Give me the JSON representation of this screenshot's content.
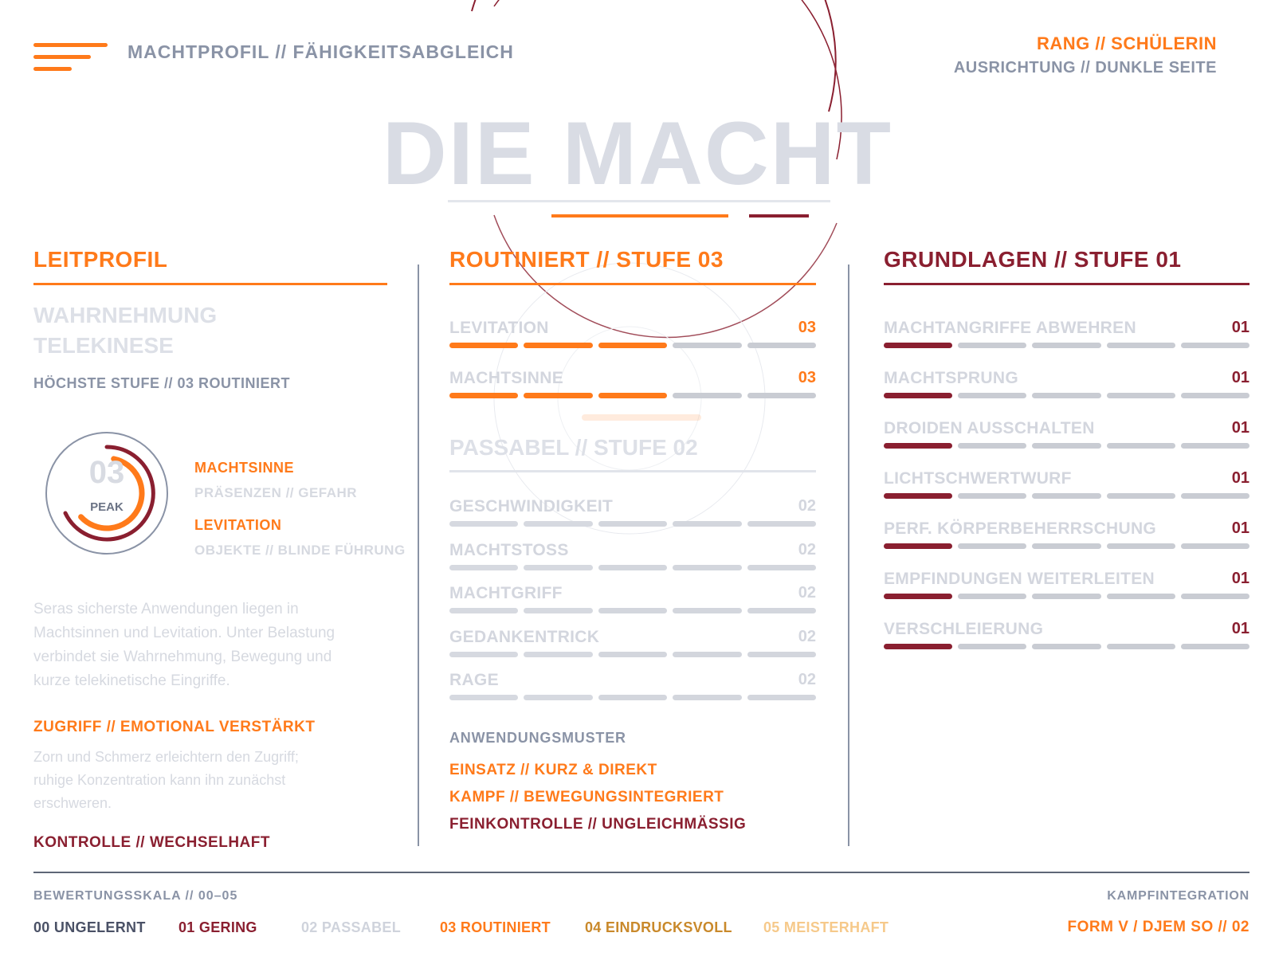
{
  "header": {
    "title": "MACHTPROFIL // FÄHIGKEITSABGLEICH",
    "rank": "RANG // SCHÜLERIN",
    "alignment": "AUSRICHTUNG // DUNKLE SEITE",
    "menu_icon": "hamburger-menu-icon"
  },
  "hero": {
    "title": "DIE MACHT"
  },
  "colors": {
    "orange": "#ff7a1a",
    "wine": "#8a1f30",
    "gray": "#8a93a6",
    "segment_off": "#c9ccd3"
  },
  "lead_profile": {
    "heading": "LEITPROFIL",
    "focus_line1": "WAHRNEHMUNG",
    "focus_line2": "TELEKINESE",
    "highest": "HÖCHSTE STUFE // 03 ROUTINIERT",
    "gauge_value": "03",
    "gauge_label": "PEAK",
    "gauge_level": 0.6,
    "skills": [
      {
        "name": "MACHTSINNE",
        "detail": "PRÄSENZEN // GEFAHR"
      },
      {
        "name": "LEVITATION",
        "detail": "OBJEKTE // BLINDE FÜHRUNG"
      }
    ],
    "description": "Seras sicherste Anwendungen liegen in Machtsinnen und Levitation. Unter Belastung verbindet sie Wahrnehmung, Bewegung und kurze telekinetische Eingriffe.",
    "access_heading": "ZUGRIFF // EMOTIONAL VERSTÄRKT",
    "access_text": "Zorn und Schmerz erleichtern den Zugriff; ruhige Konzentration kann ihn zunächst erschweren.",
    "control": "KONTROLLE // WECHSELHAFT"
  },
  "routinier": {
    "heading": "ROUTINIERT // STUFE 03",
    "skills": [
      {
        "name": "LEVITATION",
        "value": "03",
        "level": 3
      },
      {
        "name": "MACHTSINNE",
        "value": "03",
        "level": 3
      }
    ]
  },
  "passabel": {
    "heading": "PASSABEL // STUFE 02",
    "skills": [
      {
        "name": "GESCHWINDIGKEIT",
        "value": "02",
        "level": 2
      },
      {
        "name": "MACHTSTOSS",
        "value": "02",
        "level": 2
      },
      {
        "name": "MACHTGRIFF",
        "value": "02",
        "level": 2
      },
      {
        "name": "GEDANKENTRICK",
        "value": "02",
        "level": 2
      },
      {
        "name": "RAGE",
        "value": "02",
        "level": 2
      }
    ]
  },
  "usage": {
    "heading": "ANWENDUNGSMUSTER",
    "items": [
      "EINSATZ // KURZ & DIREKT",
      "KAMPF // BEWEGUNGSINTEGRIERT",
      "FEINKONTROLLE // UNGLEICHMÄSSIG"
    ]
  },
  "grundlagen": {
    "heading": "GRUNDLAGEN // STUFE 01",
    "skills": [
      {
        "name": "MACHTANGRIFFE ABWEHREN",
        "value": "01",
        "level": 1
      },
      {
        "name": "MACHTSPRUNG",
        "value": "01",
        "level": 1
      },
      {
        "name": "DROIDEN AUSSCHALTEN",
        "value": "01",
        "level": 1
      },
      {
        "name": "LICHTSCHWERTWURF",
        "value": "01",
        "level": 1
      },
      {
        "name": "PERF. KÖRPERBEHERRSCHUNG",
        "value": "01",
        "level": 1
      },
      {
        "name": "EMPFINDUNGEN WEITERLEITEN",
        "value": "01",
        "level": 1
      },
      {
        "name": "VERSCHLEIERUNG",
        "value": "01",
        "level": 1
      }
    ]
  },
  "footer": {
    "scale_label": "BEWERTUNGSSKALA // 00–05",
    "legend": [
      {
        "label": "00 UNGELERNT",
        "color": "#4a5166"
      },
      {
        "label": "01 GERING",
        "color": "#8a1f30"
      },
      {
        "label": "02 PASSABEL",
        "color": "#cfd3dc"
      },
      {
        "label": "03 ROUTINIERT",
        "color": "#ff7a1a"
      },
      {
        "label": "04 EINDRUCKSVOLL",
        "color": "#c9892b"
      },
      {
        "label": "05 MEISTERHAFT",
        "color": "#f6c98a"
      }
    ],
    "integration_label": "KAMPFINTEGRATION",
    "integration_value": "FORM V / DJEM SO // 02"
  }
}
